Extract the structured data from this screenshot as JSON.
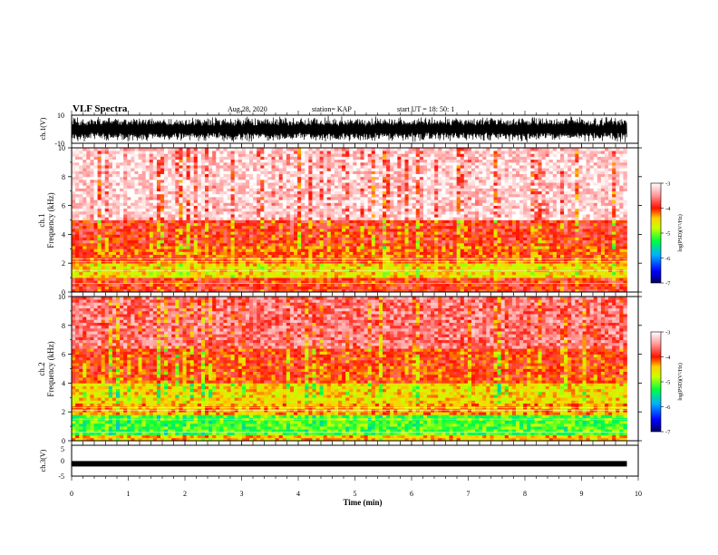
{
  "header": {
    "title": "VLF Spectra",
    "date": "Aug.28, 2020",
    "station": "station= KAP",
    "start_time": "start  UT =   18: 50: 1"
  },
  "chart_data": [
    {
      "type": "line",
      "name": "ch1-waveform",
      "ylabel": "ch.1(V)",
      "ylim": [
        -10,
        10
      ],
      "yticklabels": [
        "10",
        "-10"
      ],
      "xlim": [
        0,
        10
      ],
      "description_level": "dense oscillation roughly between -10 and 10 V spanning 0 to 9.8 min"
    },
    {
      "type": "heatmap",
      "name": "ch1-spectrogram",
      "ylabel": "ch.1\nFrequency (kHz)",
      "ylabel_lines": [
        "ch.1",
        "Frequency  (kHz)"
      ],
      "ylim": [
        0,
        10
      ],
      "yticklabels": [
        "0",
        "2",
        "4",
        "6",
        "8",
        "10"
      ],
      "xlim": [
        0,
        10
      ],
      "data_extent_min": 9.8,
      "colorbar": {
        "label": "log(PSD)(V²/Hz)",
        "range": [
          -7,
          -3
        ],
        "ticklabels": [
          "-3",
          "-4",
          "-5",
          "-6",
          "-7"
        ]
      },
      "bands": [
        {
          "fmin": 0,
          "fmax": 1.0,
          "level": -3.9
        },
        {
          "fmin": 1.0,
          "fmax": 2.0,
          "level": -4.5
        },
        {
          "fmin": 2.0,
          "fmax": 3.2,
          "level": -4.1
        },
        {
          "fmin": 3.2,
          "fmax": 5.0,
          "level": -3.9
        },
        {
          "fmin": 5.0,
          "fmax": 10.0,
          "level": -3.2
        }
      ]
    },
    {
      "type": "heatmap",
      "name": "ch2-spectrogram",
      "ylabel_lines": [
        "ch.2",
        "Frequency  (kHz)"
      ],
      "ylim": [
        0,
        10
      ],
      "yticklabels": [
        "0",
        "2",
        "4",
        "6",
        "8",
        "10"
      ],
      "xlim": [
        0,
        10
      ],
      "data_extent_min": 9.8,
      "colorbar": {
        "label": "log(PSD)(V²/Hz)",
        "range": [
          -7,
          -3
        ],
        "ticklabels": [
          "-3",
          "-4",
          "-5",
          "-6",
          "-7"
        ]
      },
      "bands": [
        {
          "fmin": 0,
          "fmax": 0.4,
          "level": -4.4
        },
        {
          "fmin": 0.4,
          "fmax": 1.8,
          "level": -5.1
        },
        {
          "fmin": 1.8,
          "fmax": 2.6,
          "level": -4.3
        },
        {
          "fmin": 2.6,
          "fmax": 4.0,
          "level": -4.5
        },
        {
          "fmin": 4.0,
          "fmax": 6.5,
          "level": -4.0
        },
        {
          "fmin": 6.5,
          "fmax": 10.0,
          "level": -3.6
        }
      ]
    },
    {
      "type": "line",
      "name": "ch3-waveform",
      "ylabel": "ch.3(V)",
      "ylim": [
        -5,
        5
      ],
      "yticklabels": [
        "5",
        "0",
        "-5"
      ],
      "xlim": [
        0,
        10
      ],
      "level_value": -1
    }
  ],
  "xaxis": {
    "label": "Time (min)",
    "ticklabels": [
      "0",
      "1",
      "2",
      "3",
      "4",
      "5",
      "6",
      "7",
      "8",
      "9",
      "10"
    ]
  },
  "colors": {
    "scale": [
      "#000080",
      "#0000ff",
      "#00a0ff",
      "#00ff60",
      "#c8ff00",
      "#ffd800",
      "#ff2000",
      "#ffb8b8",
      "#ffffff"
    ]
  }
}
